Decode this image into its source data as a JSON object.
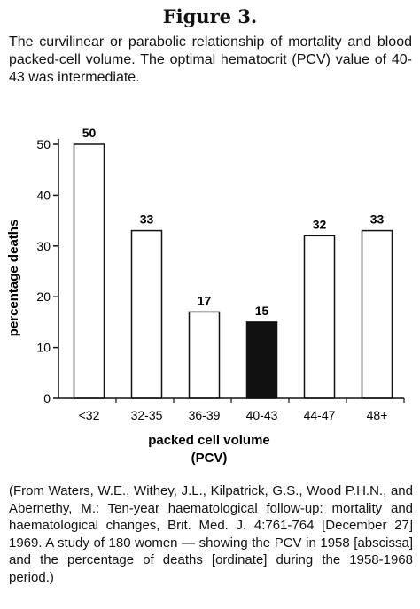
{
  "figure": {
    "title": "Figure 3.",
    "caption": "The curvilinear or parabolic relationship of mortality and blood packed-cell volume. The optimal hematocrit (PCV) value of 40-43 was intermediate.",
    "source_note": "(From Waters, W.E., Withey, J.L., Kilpatrick, G.S., Wood P.H.N., and Abernethy, M.: Ten-year haematological follow-up: mortality and haematological changes, Brit. Med. J. 4:761-764 [December 27] 1969. A study of 180 women — showing the PCV in 1958 [abscissa] and the percentage of deaths [ordinate] during the 1958-1968 period.)"
  },
  "chart_data": {
    "type": "bar",
    "title": "",
    "xlabel_line1": "packed cell volume",
    "xlabel_line2": "(PCV)",
    "ylabel": "percentage deaths",
    "categories": [
      "<32",
      "32-35",
      "36-39",
      "40-43",
      "44-47",
      "48+"
    ],
    "values": [
      50,
      33,
      17,
      15,
      32,
      33
    ],
    "data_labels": [
      "50",
      "33",
      "17",
      "15",
      "32",
      "33"
    ],
    "highlight": [
      false,
      false,
      false,
      true,
      false,
      false
    ],
    "ylim": [
      0,
      50
    ],
    "yticks": [
      0,
      10,
      20,
      30,
      40,
      50
    ],
    "grid": false,
    "legend": "none",
    "colors": {
      "bar_fill": "#ffffff",
      "highlight_fill": "#111111",
      "stroke": "#111111"
    }
  }
}
